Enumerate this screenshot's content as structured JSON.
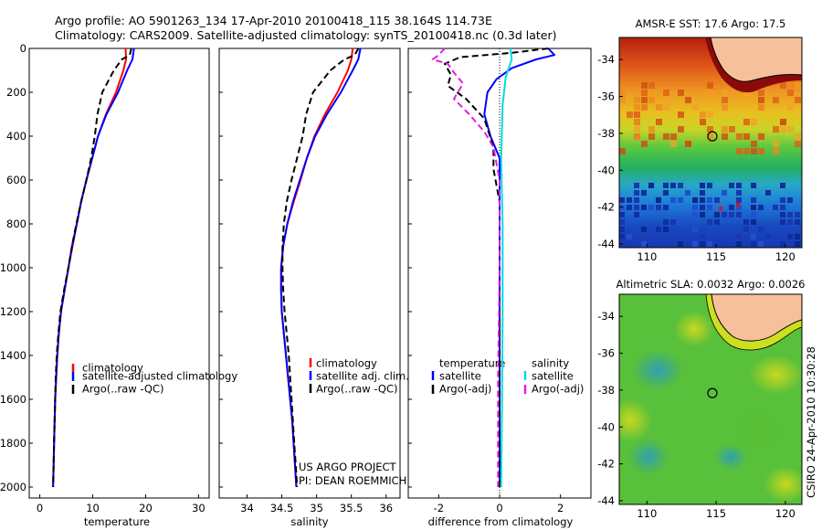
{
  "header": {
    "line1": "Argo profile: AO 5901263_134 17-Apr-2010 20100418_115 38.164S 114.73E",
    "line2": "Climatology: CARS2009. Satellite-adjusted climatology: synTS_20100418.nc (0.3d later)"
  },
  "side_label": "CSIRO 24-Apr-2010 10:30:28",
  "chart_data": [
    {
      "type": "line",
      "id": "temperature",
      "xlabel": "temperature",
      "ylabel": "",
      "xlim": [
        -2,
        32
      ],
      "ylim": [
        0,
        2050
      ],
      "y_reversed": true,
      "xticks": [
        0,
        10,
        20,
        30
      ],
      "yticks": [
        0,
        200,
        400,
        600,
        800,
        1000,
        1200,
        1400,
        1600,
        1800,
        2000
      ],
      "legend": [
        "climatology",
        "satellite-adjusted climatology",
        "Argo(..raw -QC)"
      ],
      "series": [
        {
          "name": "climatology",
          "color": "#ff0000",
          "dash": "none",
          "points": [
            [
              16.2,
              0
            ],
            [
              16.3,
              50
            ],
            [
              15.8,
              100
            ],
            [
              14.4,
              200
            ],
            [
              12.5,
              300
            ],
            [
              11.0,
              400
            ],
            [
              9.9,
              500
            ],
            [
              8.8,
              600
            ],
            [
              7.8,
              700
            ],
            [
              7.0,
              800
            ],
            [
              6.2,
              900
            ],
            [
              5.4,
              1000
            ],
            [
              4.7,
              1100
            ],
            [
              4.0,
              1200
            ],
            [
              3.6,
              1300
            ],
            [
              3.3,
              1400
            ],
            [
              3.1,
              1500
            ],
            [
              2.9,
              1600
            ],
            [
              2.8,
              1700
            ],
            [
              2.7,
              1800
            ],
            [
              2.6,
              1900
            ],
            [
              2.5,
              2000
            ]
          ]
        },
        {
          "name": "satellite-adjusted climatology",
          "color": "#0000ff",
          "dash": "none",
          "points": [
            [
              17.8,
              0
            ],
            [
              17.5,
              50
            ],
            [
              16.5,
              100
            ],
            [
              14.8,
              200
            ],
            [
              12.6,
              300
            ],
            [
              11.0,
              400
            ],
            [
              9.9,
              500
            ],
            [
              8.8,
              600
            ],
            [
              7.8,
              700
            ],
            [
              7.0,
              800
            ],
            [
              6.1,
              900
            ],
            [
              5.4,
              1000
            ],
            [
              4.7,
              1100
            ],
            [
              4.0,
              1200
            ],
            [
              3.6,
              1300
            ],
            [
              3.3,
              1400
            ],
            [
              3.1,
              1500
            ],
            [
              2.9,
              1600
            ],
            [
              2.8,
              1700
            ],
            [
              2.7,
              1800
            ],
            [
              2.6,
              1900
            ],
            [
              2.5,
              2000
            ]
          ]
        },
        {
          "name": "Argo(..raw -QC)",
          "color": "#000000",
          "dash": "7,4",
          "points": [
            [
              17.3,
              0
            ],
            [
              17.0,
              30
            ],
            [
              15.5,
              50
            ],
            [
              14.0,
              100
            ],
            [
              11.8,
              200
            ],
            [
              10.9,
              300
            ],
            [
              10.4,
              400
            ],
            [
              9.7,
              500
            ],
            [
              8.8,
              600
            ],
            [
              7.8,
              700
            ],
            [
              6.9,
              800
            ],
            [
              6.1,
              900
            ],
            [
              5.4,
              1000
            ],
            [
              4.6,
              1100
            ],
            [
              3.9,
              1200
            ],
            [
              3.5,
              1300
            ],
            [
              3.2,
              1400
            ],
            [
              3.0,
              1500
            ],
            [
              2.9,
              1600
            ],
            [
              2.8,
              1700
            ],
            [
              2.7,
              1800
            ],
            [
              2.6,
              1900
            ],
            [
              2.5,
              2000
            ]
          ]
        }
      ]
    },
    {
      "type": "line",
      "id": "salinity",
      "xlabel": "salinity",
      "ylabel": "",
      "xlim": [
        33.6,
        36.2
      ],
      "ylim": [
        0,
        2050
      ],
      "y_reversed": true,
      "xticks": [
        34,
        34.5,
        35,
        35.5,
        36
      ],
      "yticks": [
        0,
        200,
        400,
        600,
        800,
        1000,
        1200,
        1400,
        1600,
        1800,
        2000
      ],
      "legend": [
        "climatology",
        "satellite adj. clim.",
        "Argo(..raw -QC)"
      ],
      "annotation": [
        "US ARGO PROJECT",
        "PI: DEAN ROEMMICH"
      ],
      "series": [
        {
          "name": "climatology",
          "color": "#ff0000",
          "dash": "none",
          "points": [
            [
              35.52,
              0
            ],
            [
              35.5,
              50
            ],
            [
              35.45,
              100
            ],
            [
              35.3,
              200
            ],
            [
              35.12,
              300
            ],
            [
              34.97,
              400
            ],
            [
              34.86,
              500
            ],
            [
              34.77,
              600
            ],
            [
              34.67,
              700
            ],
            [
              34.58,
              800
            ],
            [
              34.52,
              900
            ],
            [
              34.49,
              1000
            ],
            [
              34.49,
              1100
            ],
            [
              34.5,
              1200
            ],
            [
              34.53,
              1300
            ],
            [
              34.56,
              1400
            ],
            [
              34.59,
              1500
            ],
            [
              34.62,
              1600
            ],
            [
              34.65,
              1700
            ],
            [
              34.67,
              1800
            ],
            [
              34.69,
              1900
            ],
            [
              34.71,
              2000
            ]
          ]
        },
        {
          "name": "satellite adj. clim.",
          "color": "#0000ff",
          "dash": "none",
          "points": [
            [
              35.63,
              0
            ],
            [
              35.6,
              50
            ],
            [
              35.52,
              100
            ],
            [
              35.35,
              200
            ],
            [
              35.15,
              300
            ],
            [
              34.98,
              400
            ],
            [
              34.86,
              500
            ],
            [
              34.76,
              600
            ],
            [
              34.66,
              700
            ],
            [
              34.58,
              800
            ],
            [
              34.52,
              900
            ],
            [
              34.49,
              1000
            ],
            [
              34.49,
              1100
            ],
            [
              34.5,
              1200
            ],
            [
              34.53,
              1300
            ],
            [
              34.56,
              1400
            ],
            [
              34.59,
              1500
            ],
            [
              34.62,
              1600
            ],
            [
              34.65,
              1700
            ],
            [
              34.67,
              1800
            ],
            [
              34.69,
              1900
            ],
            [
              34.71,
              2000
            ]
          ]
        },
        {
          "name": "Argo(..raw -QC)",
          "color": "#000000",
          "dash": "7,4",
          "points": [
            [
              35.6,
              0
            ],
            [
              35.55,
              30
            ],
            [
              35.4,
              50
            ],
            [
              35.2,
              100
            ],
            [
              34.95,
              200
            ],
            [
              34.85,
              300
            ],
            [
              34.8,
              400
            ],
            [
              34.72,
              500
            ],
            [
              34.64,
              600
            ],
            [
              34.57,
              700
            ],
            [
              34.53,
              800
            ],
            [
              34.51,
              900
            ],
            [
              34.51,
              1000
            ],
            [
              34.52,
              1100
            ],
            [
              34.54,
              1200
            ],
            [
              34.57,
              1300
            ],
            [
              34.6,
              1400
            ],
            [
              34.62,
              1500
            ],
            [
              34.64,
              1600
            ],
            [
              34.66,
              1700
            ],
            [
              34.68,
              1800
            ],
            [
              34.7,
              1900
            ],
            [
              34.72,
              2000
            ]
          ]
        }
      ]
    },
    {
      "type": "line",
      "id": "difference",
      "xlabel": "difference from climatology",
      "ylabel": "",
      "xlim": [
        -3,
        3
      ],
      "ylim": [
        0,
        2050
      ],
      "y_reversed": true,
      "xticks": [
        -2,
        0,
        2
      ],
      "yticks": [
        0,
        200,
        400,
        600,
        800,
        1000,
        1200,
        1400,
        1600,
        1800,
        2000
      ],
      "legend_headers": [
        "temperature",
        "salinity"
      ],
      "legend": [
        "satellite",
        "Argo(-adj)",
        "satellite",
        "Argo(-adj)"
      ],
      "series": [
        {
          "name": "satellite",
          "group": "temperature",
          "color": "#0000ff",
          "dash": "none",
          "points": [
            [
              1.6,
              0
            ],
            [
              1.8,
              30
            ],
            [
              1.2,
              50
            ],
            [
              0.4,
              90
            ],
            [
              -0.1,
              140
            ],
            [
              -0.4,
              200
            ],
            [
              -0.5,
              300
            ],
            [
              -0.3,
              400
            ],
            [
              0.0,
              500
            ],
            [
              0.0,
              700
            ],
            [
              0.0,
              1000
            ],
            [
              0.0,
              1500
            ],
            [
              0.0,
              2000
            ]
          ]
        },
        {
          "name": "Argo(-adj)",
          "group": "temperature",
          "color": "#000000",
          "dash": "7,4",
          "points": [
            [
              1.6,
              0
            ],
            [
              0.4,
              20
            ],
            [
              -1.3,
              40
            ],
            [
              -1.8,
              70
            ],
            [
              -1.6,
              120
            ],
            [
              -1.7,
              170
            ],
            [
              -1.1,
              230
            ],
            [
              -0.5,
              320
            ],
            [
              -0.2,
              450
            ],
            [
              -0.2,
              550
            ],
            [
              0.0,
              700
            ],
            [
              0.0,
              1000
            ],
            [
              0.0,
              1500
            ],
            [
              0.0,
              2000
            ]
          ]
        },
        {
          "name": "satellite",
          "group": "salinity",
          "color": "#00dddd",
          "dash": "none",
          "points": [
            [
              0.35,
              0
            ],
            [
              0.4,
              50
            ],
            [
              0.2,
              130
            ],
            [
              0.1,
              260
            ],
            [
              0.05,
              500
            ],
            [
              0.1,
              800
            ],
            [
              0.1,
              1200
            ],
            [
              0.08,
              1600
            ],
            [
              0.05,
              2000
            ]
          ]
        },
        {
          "name": "Argo(-adj)",
          "group": "salinity",
          "color": "#e020e0",
          "dash": "7,4",
          "points": [
            [
              -1.8,
              0
            ],
            [
              -2.0,
              30
            ],
            [
              -2.2,
              50
            ],
            [
              -1.7,
              70
            ],
            [
              -1.5,
              110
            ],
            [
              -1.2,
              160
            ],
            [
              -1.5,
              230
            ],
            [
              -1.0,
              300
            ],
            [
              -0.5,
              380
            ],
            [
              -0.2,
              450
            ],
            [
              0.0,
              600
            ],
            [
              0.0,
              1000
            ],
            [
              -0.05,
              1500
            ],
            [
              -0.05,
              2000
            ]
          ]
        }
      ]
    },
    {
      "type": "heatmap",
      "id": "sst-map",
      "title": "AMSR-E SST: 17.6 Argo: 17.5",
      "xlim": [
        108,
        121.2
      ],
      "ylim": [
        -44.2,
        -32.8
      ],
      "xticks": [
        110,
        115,
        120
      ],
      "yticks": [
        -34,
        -36,
        -38,
        -40,
        -42,
        -44
      ],
      "marker": {
        "lon": 114.73,
        "lat": -38.16
      }
    },
    {
      "type": "heatmap",
      "id": "sla-map",
      "title": "Altimetric SLA: 0.0032 Argo: 0.0026",
      "xlim": [
        108,
        121.2
      ],
      "ylim": [
        -44.2,
        -32.8
      ],
      "xticks": [
        110,
        115,
        120
      ],
      "yticks": [
        -34,
        -36,
        -38,
        -40,
        -42,
        -44
      ],
      "marker": {
        "lon": 114.73,
        "lat": -38.16
      }
    }
  ]
}
